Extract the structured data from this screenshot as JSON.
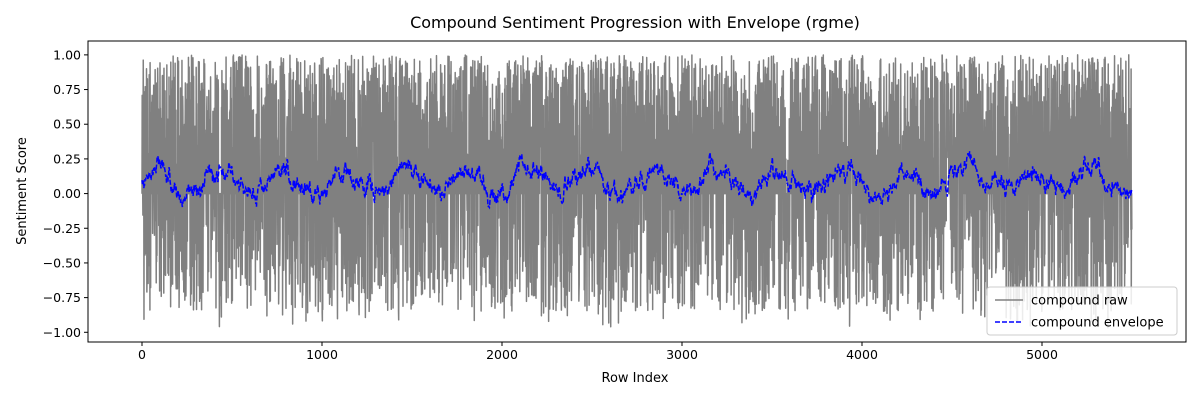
{
  "chart_data": {
    "type": "line",
    "title": "Compound Sentiment Progression with Envelope (rgme)",
    "xlabel": "Row Index",
    "ylabel": "Sentiment Score",
    "xlim": [
      -300,
      5800
    ],
    "ylim": [
      -1.07,
      1.1
    ],
    "xticks": [
      0,
      1000,
      2000,
      3000,
      4000,
      5000
    ],
    "yticks": [
      -1.0,
      -0.75,
      -0.5,
      -0.25,
      0.0,
      0.25,
      0.5,
      0.75,
      1.0
    ],
    "ytick_labels": [
      "−1.00",
      "−0.75",
      "−0.50",
      "−0.25",
      "0.00",
      "0.25",
      "0.50",
      "0.75",
      "1.00"
    ],
    "grid": false,
    "legend_position": "bottom-right",
    "n_points": 5500,
    "series": [
      {
        "name": "compound raw",
        "color": "#808080",
        "style": "solid",
        "approx_range": [
          -0.97,
          1.0
        ],
        "approx_typical_band": [
          -0.6,
          0.9
        ]
      },
      {
        "name": "compound envelope",
        "color": "#0000ff",
        "style": "dashed",
        "approx_range": [
          -0.2,
          0.38
        ],
        "approx_mean": 0.1
      }
    ]
  }
}
